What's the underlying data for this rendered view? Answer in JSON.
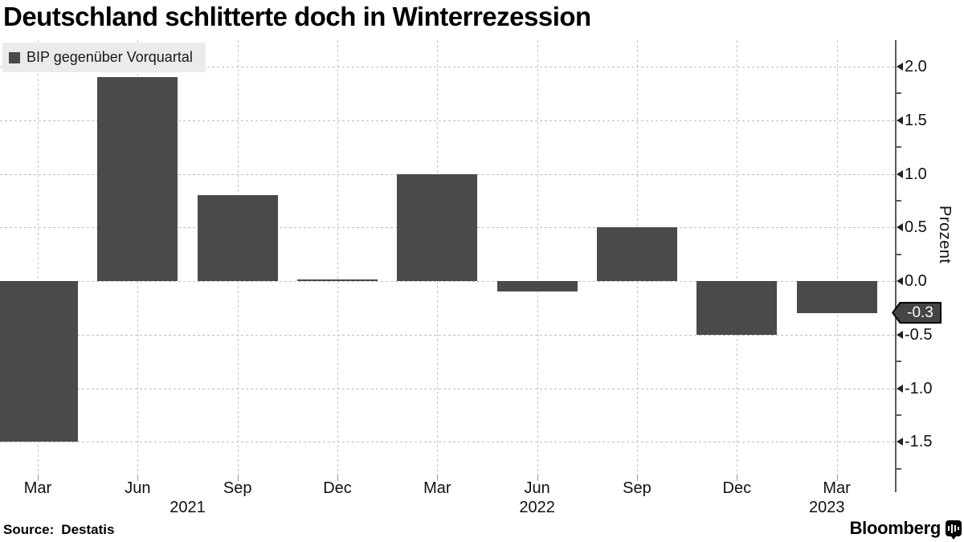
{
  "title": "Deutschland schlitterte doch in Winterrezession",
  "legend": {
    "label": "BIP gegenüber Vorquartal"
  },
  "axis": {
    "unit_label": "Prozent"
  },
  "callout": {
    "label": "-0.3"
  },
  "footer": {
    "source_prefix": "Source:",
    "source_name": "Destatis",
    "brand": "Bloomberg"
  },
  "colors": {
    "bar": "#4a4a4a",
    "legend_background": "#ebebeb",
    "callout_background": "#454545",
    "callout_text": "#ffffff",
    "gridline": "#c4c4c4",
    "axis_line": "#5a5a5a",
    "text": "#111111"
  },
  "chart_data": {
    "type": "bar",
    "title": "Deutschland schlitterte doch in Winterrezession",
    "series": [
      {
        "name": "BIP gegenüber Vorquartal",
        "values": [
          -1.5,
          1.9,
          0.8,
          0.0,
          1.0,
          -0.1,
          0.5,
          -0.5,
          -0.3
        ]
      }
    ],
    "categories": [
      "Mar",
      "Jun",
      "Sep",
      "Dec",
      "Mar",
      "Jun",
      "Sep",
      "Dec",
      "Mar"
    ],
    "year_labels": [
      {
        "label": "2021",
        "index": 1.5
      },
      {
        "label": "2022",
        "index": 5
      },
      {
        "label": "2023",
        "index": 7.9
      }
    ],
    "xlabel": "",
    "ylabel": "Prozent",
    "ylim": [
      -1.75,
      2.25
    ],
    "yticks": [
      2.0,
      1.5,
      1.0,
      0.5,
      0.0,
      -0.5,
      -1.0,
      -1.5
    ],
    "ytick_labels": [
      "2.0",
      "1.5",
      "1.0",
      "0.5",
      "0.0",
      "-0.5",
      "-1.0",
      "-1.5"
    ],
    "minor_tick_step": 0.25,
    "grid": true,
    "legend_position": "top-left",
    "latest_value": -0.3,
    "latest_value_label": "-0.3",
    "source": "Destatis"
  }
}
